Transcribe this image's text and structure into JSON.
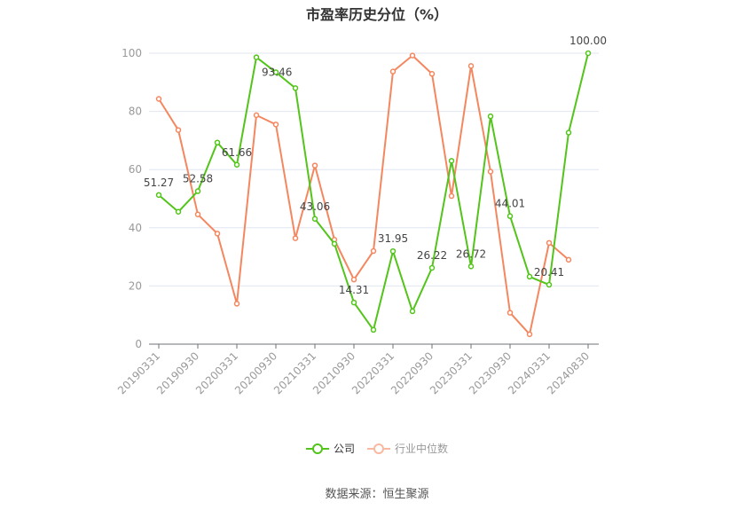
{
  "title": "市盈率历史分位（%）",
  "source": "数据来源：恒生聚源",
  "legend": [
    {
      "name": "公司",
      "color": "#52c41a"
    },
    {
      "name": "行业中位数",
      "color": "#f4875f"
    }
  ],
  "chart_data": {
    "type": "line",
    "title": "市盈率历史分位（%）",
    "xlabel": "",
    "ylabel": "",
    "ylim": [
      0,
      100
    ],
    "yticks": [
      0,
      20,
      40,
      60,
      80,
      100
    ],
    "grid": true,
    "legend_position": "bottom",
    "x_tick_labels": [
      "20190331",
      "20190930",
      "20200331",
      "20200930",
      "20210331",
      "20210930",
      "20220331",
      "20220930",
      "20230331",
      "20230930",
      "20240331",
      "20240830"
    ],
    "x": [
      "20190331",
      "20190630",
      "20190930",
      "20191231",
      "20200331",
      "20200630",
      "20200930",
      "20201231",
      "20210331",
      "20210630",
      "20210930",
      "20211231",
      "20220331",
      "20220630",
      "20220930",
      "20221231",
      "20230331",
      "20230630",
      "20230930",
      "20231231",
      "20240331",
      "20240630",
      "20240830"
    ],
    "series": [
      {
        "name": "公司",
        "color": "#52c41a",
        "values": [
          51.27,
          45.5,
          52.58,
          69.3,
          61.66,
          98.6,
          93.46,
          88.0,
          43.06,
          34.5,
          14.31,
          4.9,
          31.95,
          11.3,
          26.22,
          63.0,
          26.72,
          78.3,
          44.01,
          23.2,
          20.41,
          72.7,
          100.0
        ],
        "labels": {
          "0": "51.27",
          "2": "52.58",
          "4": "61.66",
          "6": "93.46",
          "8": "43.06",
          "10": "14.31",
          "12": "31.95",
          "14": "26.22",
          "16": "26.72",
          "18": "44.01",
          "20": "20.41",
          "22": "100.00"
        }
      },
      {
        "name": "行业中位数",
        "color": "#f4875f",
        "values": [
          84.3,
          73.6,
          44.6,
          38.0,
          13.9,
          78.7,
          75.5,
          36.4,
          61.4,
          35.9,
          22.2,
          32.0,
          93.7,
          99.2,
          92.9,
          50.9,
          95.6,
          59.3,
          10.8,
          3.4,
          34.8,
          29.0,
          null
        ]
      }
    ]
  }
}
